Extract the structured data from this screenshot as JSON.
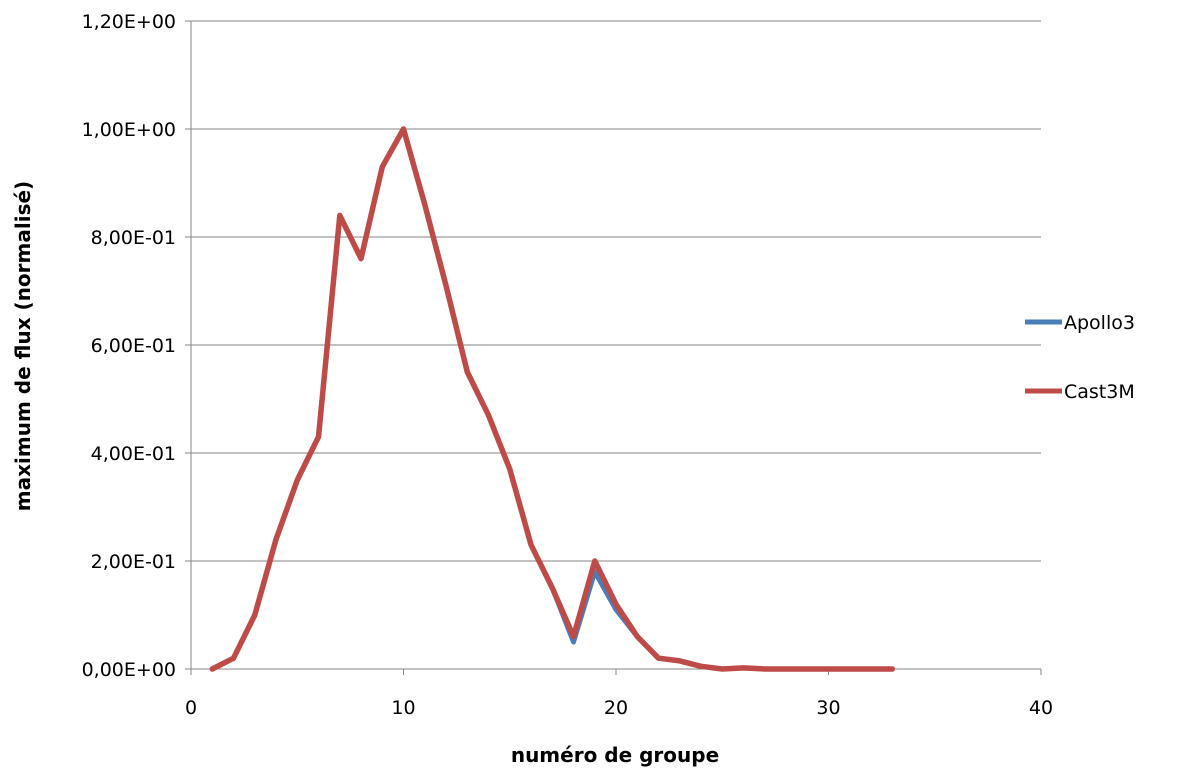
{
  "chart_data": {
    "type": "line",
    "title": "",
    "xlabel": "numéro de groupe",
    "ylabel": "maximum de flux (normalisé)",
    "xlim": [
      0,
      40
    ],
    "ylim": [
      0,
      1.2
    ],
    "x_ticks": [
      0,
      10,
      20,
      30,
      40
    ],
    "x_tick_labels": [
      "0",
      "10",
      "20",
      "30",
      "40"
    ],
    "y_ticks": [
      0,
      0.2,
      0.4,
      0.6,
      0.8,
      1.0,
      1.2
    ],
    "y_tick_labels": [
      "0,00E+00",
      "2,00E-01",
      "4,00E-01",
      "6,00E-01",
      "8,00E-01",
      "1,00E+00",
      "1,20E+00"
    ],
    "grid": "horizontal",
    "legend_position": "right",
    "x": [
      1,
      2,
      3,
      4,
      5,
      6,
      7,
      8,
      9,
      10,
      11,
      12,
      13,
      14,
      15,
      16,
      17,
      18,
      19,
      20,
      21,
      22,
      23,
      24,
      25,
      26,
      27,
      28,
      29,
      30,
      31,
      32,
      33
    ],
    "series": [
      {
        "name": "Apollo3",
        "color": "#4a7ebb",
        "values": [
          0.0,
          0.02,
          0.1,
          0.24,
          0.35,
          0.43,
          0.84,
          0.76,
          0.93,
          1.0,
          0.86,
          0.71,
          0.55,
          0.47,
          0.37,
          0.23,
          0.15,
          0.05,
          0.18,
          0.11,
          0.06,
          0.02,
          0.015,
          0.005,
          0.0,
          0.002,
          0.0,
          0.0,
          0.0,
          0.0,
          0.0,
          0.0,
          0.0
        ]
      },
      {
        "name": "Cast3M",
        "color": "#be4b48",
        "values": [
          0.0,
          0.02,
          0.1,
          0.24,
          0.35,
          0.43,
          0.84,
          0.76,
          0.93,
          1.0,
          0.86,
          0.71,
          0.55,
          0.47,
          0.37,
          0.23,
          0.15,
          0.06,
          0.2,
          0.12,
          0.06,
          0.02,
          0.015,
          0.005,
          0.0,
          0.002,
          0.0,
          0.0,
          0.0,
          0.0,
          0.0,
          0.0,
          0.0
        ]
      }
    ]
  }
}
